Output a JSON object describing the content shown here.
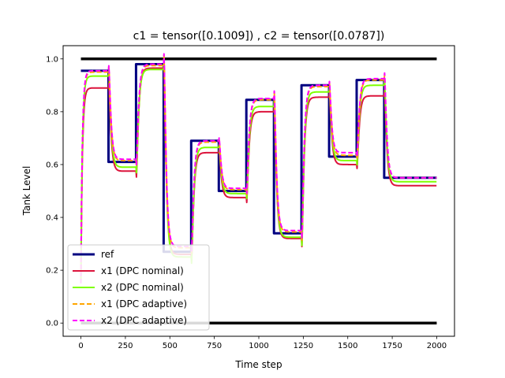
{
  "chart_data": {
    "type": "line",
    "title": "c1 = tensor([0.1009]) , c2 = tensor([0.0787])",
    "xlabel": "Time step",
    "ylabel": "Tank Level",
    "xlim": [
      -100,
      2100
    ],
    "ylim": [
      -0.05,
      1.05
    ],
    "xticks": [
      0,
      250,
      500,
      750,
      1000,
      1250,
      1500,
      1750,
      2000
    ],
    "yticks": [
      0.0,
      0.2,
      0.4,
      0.6,
      0.8,
      1.0
    ],
    "xtick_labels": [
      "0",
      "250",
      "500",
      "750",
      "1000",
      "1250",
      "1500",
      "1750",
      "2000"
    ],
    "ytick_labels": [
      "0.0",
      "0.2",
      "0.4",
      "0.6",
      "0.8",
      "1.0"
    ],
    "grid": false,
    "legend_position": "lower-left",
    "bounds": {
      "upper": 1.0,
      "lower": 0.0,
      "x": [
        0,
        2000
      ],
      "color": "#000000"
    },
    "setpoints": {
      "t": [
        0,
        155,
        310,
        465,
        620,
        775,
        930,
        1085,
        1240,
        1395,
        1550,
        1705,
        2000
      ],
      "ref": [
        0.955,
        0.61,
        0.98,
        0.27,
        0.69,
        0.5,
        0.845,
        0.34,
        0.9,
        0.63,
        0.92,
        0.55
      ],
      "x1_nominal": [
        0.89,
        0.575,
        0.965,
        0.26,
        0.645,
        0.475,
        0.8,
        0.32,
        0.855,
        0.6,
        0.86,
        0.52
      ],
      "x2_nominal": [
        0.935,
        0.59,
        0.96,
        0.25,
        0.665,
        0.49,
        0.82,
        0.325,
        0.875,
        0.615,
        0.9,
        0.535
      ],
      "x1_adaptive": [
        0.95,
        0.615,
        0.975,
        0.285,
        0.685,
        0.505,
        0.845,
        0.345,
        0.895,
        0.635,
        0.92,
        0.55
      ],
      "x2_adaptive": [
        0.955,
        0.62,
        0.98,
        0.29,
        0.69,
        0.51,
        0.85,
        0.35,
        0.9,
        0.645,
        0.925,
        0.55
      ]
    },
    "series": [
      {
        "name": "ref",
        "key": "ref",
        "color": "#000080",
        "width": 3,
        "dash": "",
        "style": "step"
      },
      {
        "name": "x1 (DPC nominal)",
        "key": "x1_nominal",
        "color": "#dc143c",
        "width": 2,
        "dash": "",
        "style": "dynamic"
      },
      {
        "name": "x2 (DPC nominal)",
        "key": "x2_nominal",
        "color": "#7fff00",
        "width": 2,
        "dash": "",
        "style": "dynamic"
      },
      {
        "name": "x1 (DPC adaptive)",
        "key": "x1_adaptive",
        "color": "#ffa500",
        "width": 2,
        "dash": "6,3",
        "style": "dynamic"
      },
      {
        "name": "x2 (DPC adaptive)",
        "key": "x2_adaptive",
        "color": "#ff00ff",
        "width": 2,
        "dash": "6,3",
        "style": "dynamic"
      }
    ]
  }
}
